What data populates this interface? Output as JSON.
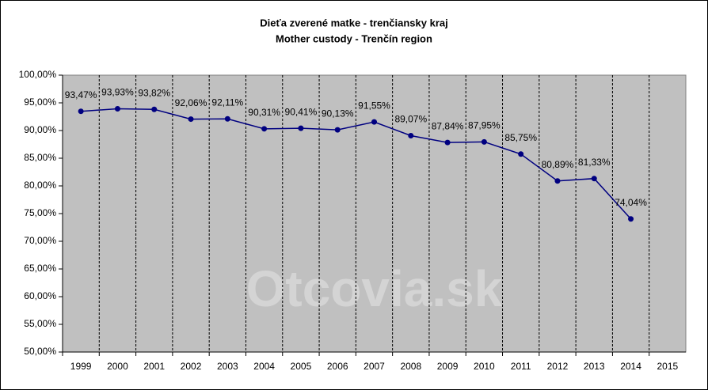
{
  "chart_data": {
    "type": "line",
    "title": "Dieťa zverené matke - trenčiansky kraj",
    "subtitle": "Mother custody - Trenčín region",
    "watermark": "Otcovia.sk",
    "categories": [
      "1999",
      "2000",
      "2001",
      "2002",
      "2003",
      "2004",
      "2005",
      "2006",
      "2007",
      "2008",
      "2009",
      "2010",
      "2011",
      "2012",
      "2013",
      "2014",
      "2015"
    ],
    "series": [
      {
        "name": "Mother custody",
        "color": "#000080",
        "values": [
          93.47,
          93.93,
          93.82,
          92.06,
          92.11,
          90.31,
          90.41,
          90.13,
          91.55,
          89.07,
          87.84,
          87.95,
          85.75,
          80.89,
          81.33,
          74.04,
          null
        ],
        "value_labels": [
          "93,47%",
          "93,93%",
          "93,82%",
          "92,06%",
          "92,11%",
          "90,31%",
          "90,41%",
          "90,13%",
          "91,55%",
          "89,07%",
          "87,84%",
          "87,95%",
          "85,75%",
          "80,89%",
          "81,33%",
          "74,04%",
          null
        ]
      }
    ],
    "ylim": [
      50,
      100
    ],
    "yticks": [
      {
        "value": 50,
        "label": "50,00%"
      },
      {
        "value": 55,
        "label": "55,00%"
      },
      {
        "value": 60,
        "label": "60,00%"
      },
      {
        "value": 65,
        "label": "65,00%"
      },
      {
        "value": 70,
        "label": "70,00%"
      },
      {
        "value": 75,
        "label": "75,00%"
      },
      {
        "value": 80,
        "label": "80,00%"
      },
      {
        "value": 85,
        "label": "85,00%"
      },
      {
        "value": 90,
        "label": "90,00%"
      },
      {
        "value": 95,
        "label": "95,00%"
      },
      {
        "value": 100,
        "label": "100,00%"
      }
    ],
    "background": "#c0c0c0"
  }
}
